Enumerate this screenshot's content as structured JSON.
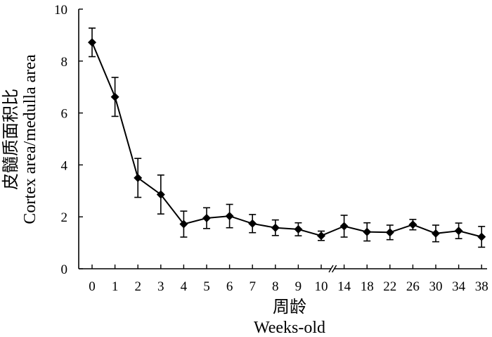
{
  "chart_data": {
    "type": "line",
    "title": "",
    "xlabel_cn": "周龄",
    "xlabel_en": "Weeks-old",
    "ylabel_cn": "皮髓质面积比",
    "ylabel_en": "Cortex area/medulla area",
    "categories": [
      "0",
      "1",
      "2",
      "3",
      "4",
      "5",
      "6",
      "7",
      "8",
      "9",
      "10",
      "14",
      "18",
      "22",
      "26",
      "30",
      "34",
      "38"
    ],
    "x_axis_break": "between 10 and 14",
    "ylim": [
      0,
      10
    ],
    "yticks": [
      0,
      2,
      4,
      6,
      8,
      10
    ],
    "grid": false,
    "series": [
      {
        "values": [
          8.72,
          6.62,
          3.5,
          2.86,
          1.72,
          1.95,
          2.03,
          1.74,
          1.58,
          1.52,
          1.27,
          1.64,
          1.42,
          1.4,
          1.7,
          1.36,
          1.46,
          1.23
        ],
        "errors": [
          0.55,
          0.75,
          0.75,
          0.75,
          0.5,
          0.4,
          0.45,
          0.35,
          0.3,
          0.25,
          0.18,
          0.42,
          0.35,
          0.28,
          0.2,
          0.32,
          0.3,
          0.4
        ]
      }
    ],
    "color": "#000000"
  }
}
